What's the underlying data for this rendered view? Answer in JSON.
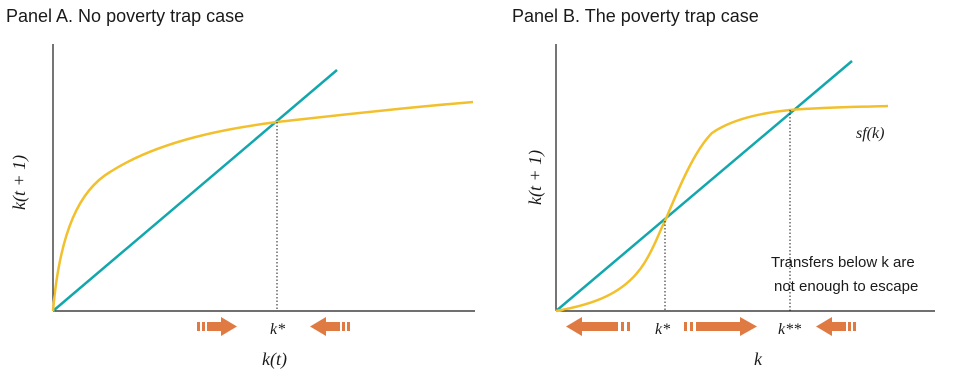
{
  "panel_a": {
    "title": "Panel A. No poverty trap case",
    "ylabel": "k(t + 1)",
    "xlabel": "k(t)",
    "steady_state_label": "k*"
  },
  "panel_b": {
    "title": "Panel B. The poverty trap case",
    "ylabel": "k(t + 1)",
    "xlabel": "k",
    "curve_label": "sf(k)",
    "low_steady_state_label": "k*",
    "high_steady_state_label": "k**",
    "note_line1": "Transfers below k are",
    "note_line2": "not enough to escape"
  },
  "colors": {
    "curve": "#f2c02c",
    "diagonal": "#12a7ad",
    "arrow": "#e07a43",
    "axis": "#1a1a1a"
  }
}
